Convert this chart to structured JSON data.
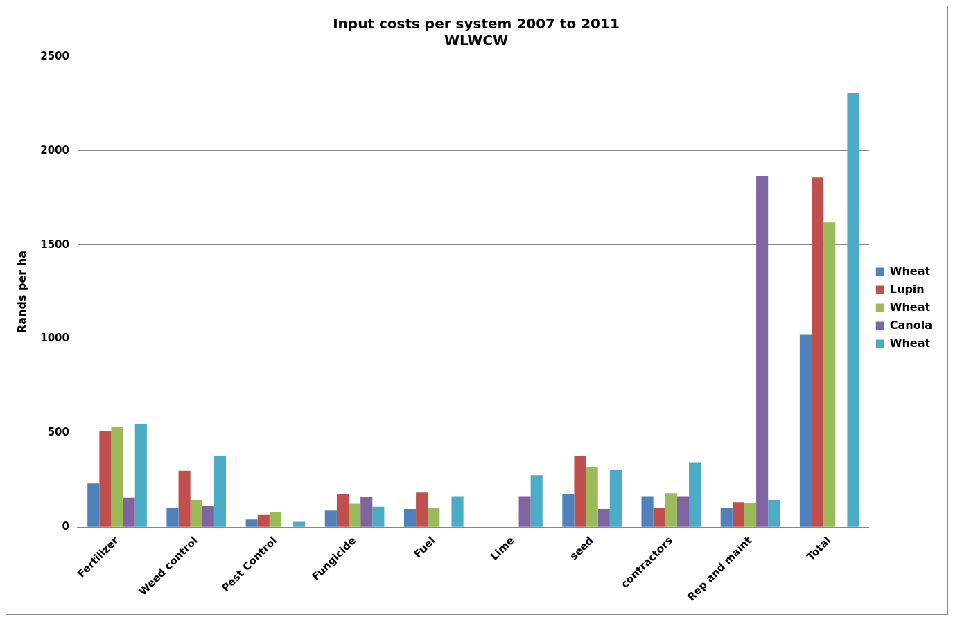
{
  "chart_data": {
    "type": "bar",
    "title": "Input costs per system 2007 to 2011",
    "subtitle": "WLWCW",
    "ylabel": "Rands per ha",
    "categories": [
      "Fertilizer",
      "Weed control",
      "Pest Control",
      "Fungicide",
      "Fuel",
      "Lime",
      "seed",
      "contractors",
      "Rep and maint",
      "Total"
    ],
    "series": [
      {
        "name": "Wheat",
        "color": "#4f81bd",
        "values": [
          232,
          104,
          40,
          88,
          96,
          0,
          176,
          164,
          104,
          1022
        ]
      },
      {
        "name": "Lupin",
        "color": "#c0504d",
        "values": [
          509,
          300,
          68,
          176,
          184,
          0,
          377,
          100,
          132,
          1859
        ]
      },
      {
        "name": "Wheat",
        "color": "#9bbb59",
        "values": [
          533,
          144,
          80,
          124,
          104,
          0,
          320,
          180,
          128,
          1619
        ]
      },
      {
        "name": "Canola",
        "color": "#8064a2",
        "values": [
          156,
          112,
          0,
          160,
          0,
          164,
          96,
          164,
          1867,
          0
        ]
      },
      {
        "name": "Wheat",
        "color": "#4bacc6",
        "values": [
          549,
          377,
          28,
          108,
          164,
          276,
          304,
          345,
          144,
          2308
        ]
      }
    ],
    "ylim": [
      0,
      2500
    ],
    "yticks": [
      0,
      500,
      1000,
      1500,
      2000,
      2500
    ],
    "grid": "y",
    "legend": "right"
  }
}
